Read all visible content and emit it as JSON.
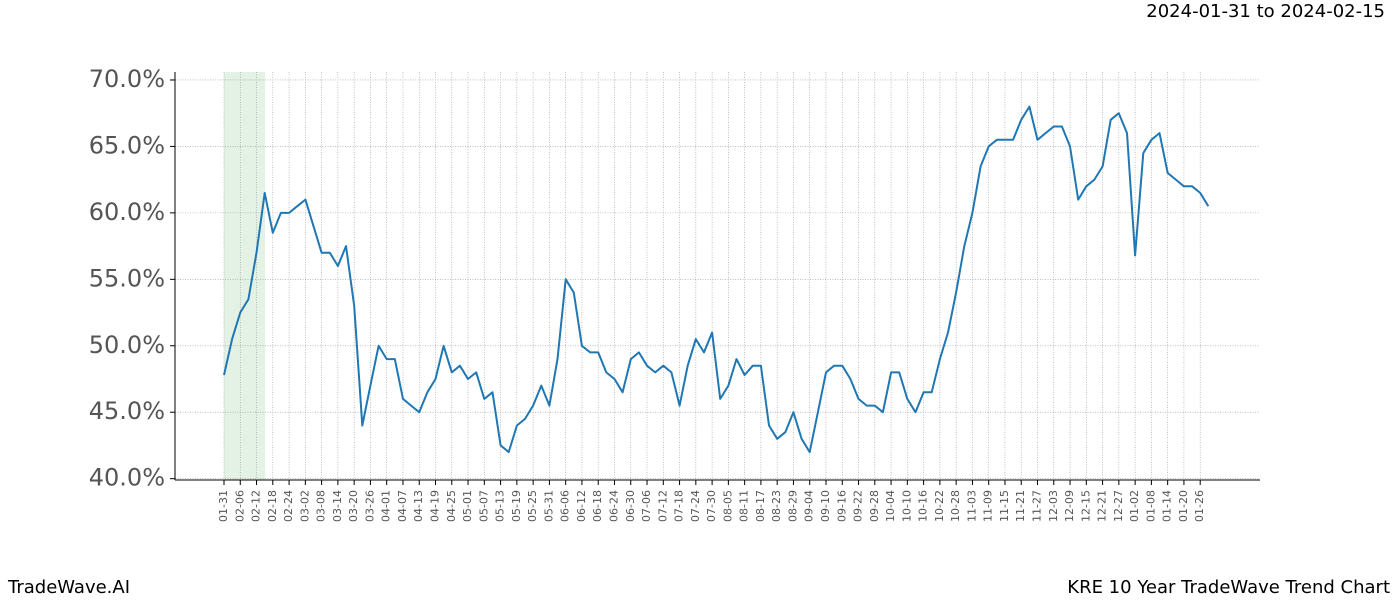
{
  "chart_data": {
    "type": "line",
    "date_range": "2024-01-31 to 2024-02-15",
    "brand": "TradeWave.AI",
    "title": "KRE 10 Year TradeWave Trend Chart",
    "color": "#1f77b4",
    "grid": true,
    "categories": [
      "01-31",
      null,
      "02-06",
      null,
      "02-12",
      null,
      "02-18",
      null,
      "02-24",
      null,
      "03-02",
      null,
      "03-08",
      null,
      "03-14",
      null,
      "03-20",
      null,
      "03-26",
      null,
      "04-01",
      null,
      "04-07",
      null,
      "04-13",
      null,
      "04-19",
      null,
      "04-25",
      null,
      "05-01",
      null,
      "05-07",
      null,
      "05-13",
      null,
      "05-19",
      null,
      "05-25",
      null,
      "05-31",
      null,
      "06-06",
      null,
      "06-12",
      null,
      "06-18",
      null,
      "06-24",
      null,
      "06-30",
      null,
      "07-06",
      null,
      "07-12",
      null,
      "07-18",
      null,
      "07-24",
      null,
      "07-30",
      null,
      "08-05",
      null,
      "08-11",
      null,
      "08-17",
      null,
      "08-23",
      null,
      "08-29",
      null,
      "09-04",
      null,
      "09-10",
      null,
      "09-16",
      null,
      "09-22",
      null,
      "09-28",
      null,
      "10-04",
      null,
      "10-10",
      null,
      "10-16",
      null,
      "10-22",
      null,
      "10-28",
      null,
      "11-03",
      null,
      "11-09",
      null,
      "11-15",
      null,
      "11-21",
      null,
      "11-27",
      null,
      "12-03",
      null,
      "12-09",
      null,
      "12-15",
      null,
      "12-21",
      null,
      "12-27",
      null,
      "01-02",
      null,
      "01-08",
      null,
      "01-14",
      null,
      "01-20",
      null,
      "01-26",
      null
    ],
    "values": [
      47.8,
      50.5,
      52.5,
      53.5,
      57,
      61.5,
      58.5,
      60,
      60,
      60.5,
      61,
      59,
      57,
      57,
      56,
      57.5,
      53,
      44,
      47,
      50,
      49,
      49,
      46,
      45.5,
      45,
      46.5,
      47.5,
      50,
      48,
      48.5,
      47.5,
      48,
      46,
      46.5,
      42.5,
      42,
      44,
      44.5,
      45.5,
      47,
      45.5,
      49,
      55,
      54,
      50,
      49.5,
      49.5,
      48,
      47.5,
      46.5,
      49,
      49.5,
      48.5,
      48,
      48.5,
      48,
      45.5,
      48.5,
      50.5,
      49.5,
      51,
      46,
      47,
      49,
      47.8,
      48.5,
      48.5,
      44,
      43,
      43.5,
      45,
      43,
      42,
      45,
      48,
      48.5,
      48.5,
      47.5,
      46,
      45.5,
      45.5,
      45,
      48,
      48,
      46,
      45,
      46.5,
      46.5,
      49,
      51,
      54,
      57.5,
      60,
      63.5,
      65,
      65.5,
      65.5,
      65.5,
      67,
      68,
      65.5,
      66,
      66.5,
      66.5,
      65,
      61,
      62,
      62.5,
      63.5,
      67,
      67.5,
      66,
      56.8,
      64.5,
      65.5,
      66,
      63,
      62.5,
      62,
      62,
      61.5,
      60.5
    ],
    "ylim": [
      39.9,
      70.6
    ],
    "yticks": [
      {
        "value": 40,
        "label": "40.0%"
      },
      {
        "value": 45,
        "label": "45.0%"
      },
      {
        "value": 50,
        "label": "50.0%"
      },
      {
        "value": 55,
        "label": "55.0%"
      },
      {
        "value": 60,
        "label": "60.0%"
      },
      {
        "value": 65,
        "label": "65.0%"
      },
      {
        "value": 70,
        "label": "70.0%"
      }
    ]
  }
}
